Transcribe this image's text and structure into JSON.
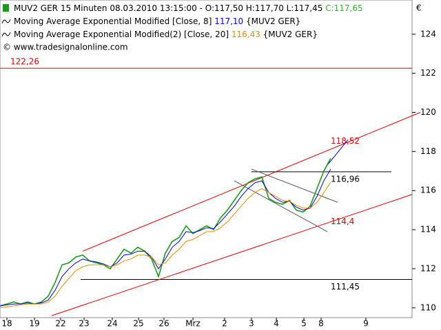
{
  "chart_data": {
    "type": "line",
    "title": "MUV2 GER 15 Minuten",
    "subtitle": "08.03.2010 13:15:00 - O:117,50 H:117,70 L:117,45",
    "close_label": "C:117,65",
    "close_color": "#22bb22",
    "source": "© www.tradesignalonline.com",
    "currency": "€",
    "xlim": [
      0,
      119.6
    ],
    "ylim": [
      109.5,
      125.75
    ],
    "xticks": [
      {
        "value": 2,
        "label": "18"
      },
      {
        "value": 10,
        "label": "19"
      },
      {
        "value": 17.6,
        "label": "22"
      },
      {
        "value": 24.4,
        "label": "23"
      },
      {
        "value": 32.6,
        "label": "24"
      },
      {
        "value": 40.2,
        "label": "25"
      },
      {
        "value": 47.6,
        "label": "26"
      },
      {
        "value": 56,
        "label": "Mrz"
      },
      {
        "value": 65.2,
        "label": "2"
      },
      {
        "value": 73,
        "label": "3"
      },
      {
        "value": 80.2,
        "label": "4"
      },
      {
        "value": 88.2,
        "label": "5"
      },
      {
        "value": 93.2,
        "label": "8"
      },
      {
        "value": 106.2,
        "label": "9"
      }
    ],
    "yticks": [
      110,
      112,
      114,
      116,
      118,
      120,
      122,
      124
    ],
    "x": [
      0,
      2,
      4,
      6,
      8,
      10,
      12,
      14,
      16,
      18,
      20,
      22,
      24,
      26,
      28,
      30,
      32,
      34,
      36,
      38,
      40,
      42,
      44,
      46,
      48,
      50,
      52,
      54,
      56,
      58,
      60,
      62,
      64,
      66,
      68,
      70,
      72,
      74,
      76,
      78,
      80,
      82,
      84,
      86,
      88,
      90,
      92,
      94,
      96
    ],
    "series": [
      {
        "color": "#1a9a1a",
        "values": [
          110.1,
          110.2,
          110.3,
          110.2,
          110.3,
          110.2,
          110.3,
          110.6,
          111.3,
          112.2,
          112.3,
          112.6,
          112.7,
          112.4,
          112.3,
          112.2,
          112.0,
          112.5,
          113.0,
          112.8,
          113.1,
          112.9,
          112.5,
          111.6,
          112.8,
          113.4,
          113.6,
          114.2,
          113.8,
          114.0,
          114.2,
          114.0,
          114.6,
          115.0,
          115.5,
          116.0,
          116.4,
          116.6,
          116.7,
          115.6,
          115.4,
          115.3,
          115.5,
          115.0,
          114.9,
          115.2,
          116.1,
          117.0,
          117.65
        ]
      },
      {
        "name": "Moving Average Exponential Modified [Close, 8]",
        "last_label": "117,10",
        "symbol": "{MUV2 GER}",
        "color": "#0000ee",
        "values": [
          110.1,
          110.15,
          110.2,
          110.2,
          110.25,
          110.2,
          110.25,
          110.4,
          110.9,
          111.6,
          112.0,
          112.3,
          112.5,
          112.4,
          112.35,
          112.25,
          112.1,
          112.3,
          112.7,
          112.75,
          112.9,
          112.9,
          112.6,
          112.0,
          112.5,
          113.1,
          113.4,
          113.9,
          113.85,
          113.95,
          114.1,
          114.05,
          114.4,
          114.8,
          115.2,
          115.7,
          116.1,
          116.4,
          116.5,
          115.9,
          115.6,
          115.4,
          115.45,
          115.15,
          115.0,
          115.1,
          115.7,
          116.5,
          117.1
        ]
      },
      {
        "name": "Moving Average Exponential Modified(2) [Close, 20]",
        "last_label": "116,43",
        "symbol": "{MUV2 GER}",
        "color": "#ee8800",
        "values": [
          110.0,
          110.05,
          110.1,
          110.15,
          110.2,
          110.2,
          110.2,
          110.3,
          110.6,
          111.1,
          111.5,
          111.9,
          112.1,
          112.2,
          112.2,
          112.2,
          112.1,
          112.2,
          112.4,
          112.5,
          112.7,
          112.7,
          112.6,
          112.2,
          112.3,
          112.7,
          113.0,
          113.4,
          113.5,
          113.7,
          113.9,
          113.9,
          114.1,
          114.4,
          114.8,
          115.2,
          115.6,
          115.9,
          116.1,
          115.9,
          115.7,
          115.5,
          115.45,
          115.25,
          115.1,
          115.1,
          115.4,
          115.9,
          116.43
        ]
      }
    ],
    "lines": [
      {
        "color": "#dd0000",
        "x": [
          24,
          122
        ],
        "y": [
          112.9,
          120.0
        ]
      },
      {
        "color": "#dd0000",
        "x": [
          15,
          119.6
        ],
        "y": [
          109.6,
          115.8
        ]
      },
      {
        "color": "#555555",
        "x": [
          73,
          98
        ],
        "y": [
          117.1,
          115.4
        ]
      },
      {
        "color": "#555555",
        "x": [
          68,
          95
        ],
        "y": [
          116.5,
          113.9
        ]
      },
      {
        "color": "#0000ee",
        "x": [
          95,
          101
        ],
        "y": [
          117.3,
          118.6
        ]
      }
    ],
    "levels": [
      {
        "value": 122.26,
        "label": "122,26",
        "color": "#dd0000",
        "x": [
          0,
          119.6
        ],
        "label_x": 3
      },
      {
        "value": 116.96,
        "label": "116,96",
        "color": "#000000",
        "x": [
          73,
          113.6
        ],
        "label_x": 96
      },
      {
        "value": 111.45,
        "label": "111,45",
        "color": "#000000",
        "x": [
          23.4,
          119.6
        ],
        "label_x": 96
      }
    ],
    "annotations": [
      {
        "value": 118.52,
        "label": "118,52",
        "color": "#dd0000",
        "x": 96
      },
      {
        "value": 114.4,
        "label": "114,4",
        "color": "#dd0000",
        "x": 96
      }
    ]
  }
}
